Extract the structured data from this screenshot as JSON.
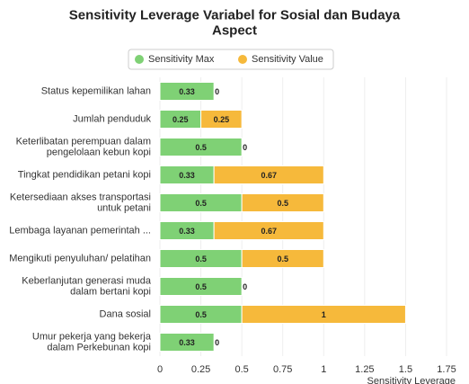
{
  "chart_data": {
    "type": "stacked_barh",
    "title": "Sensitivity Leverage Variabel for Sosial dan Budaya Aspect",
    "xlabel": "Sensitivity Leverage",
    "categories": [
      "Status kepemilikan lahan",
      "Jumlah penduduk",
      "Keterlibatan perempuan dalam\npengelolaan kebun kopi",
      "Tingkat pendidikan petani kopi",
      "Ketersediaan akses transportasi\nuntuk petani",
      "Lembaga layanan pemerintah ...",
      "Mengikuti penyuluhan/ pelatihan",
      "Keberlanjutan generasi muda\ndalam bertani kopi",
      "Dana sosial",
      "Umur pekerja yang bekerja\ndalam Perkebunan kopi"
    ],
    "series": [
      {
        "name": "Sensitivity Max",
        "color": "#7fd175",
        "values": [
          0.33,
          0.25,
          0.5,
          0.33,
          0.5,
          0.33,
          0.5,
          0.5,
          0.5,
          0.33
        ]
      },
      {
        "name": "Sensitivity Value",
        "color": "#f6b93b",
        "values": [
          0,
          0.25,
          0,
          0.67,
          0.5,
          0.67,
          0.5,
          0,
          1,
          0
        ]
      }
    ],
    "xlim": [
      0,
      1.75
    ],
    "xticks": [
      0,
      0.25,
      0.5,
      0.75,
      1,
      1.25,
      1.5,
      1.75
    ],
    "grid": true,
    "legend": "top"
  }
}
